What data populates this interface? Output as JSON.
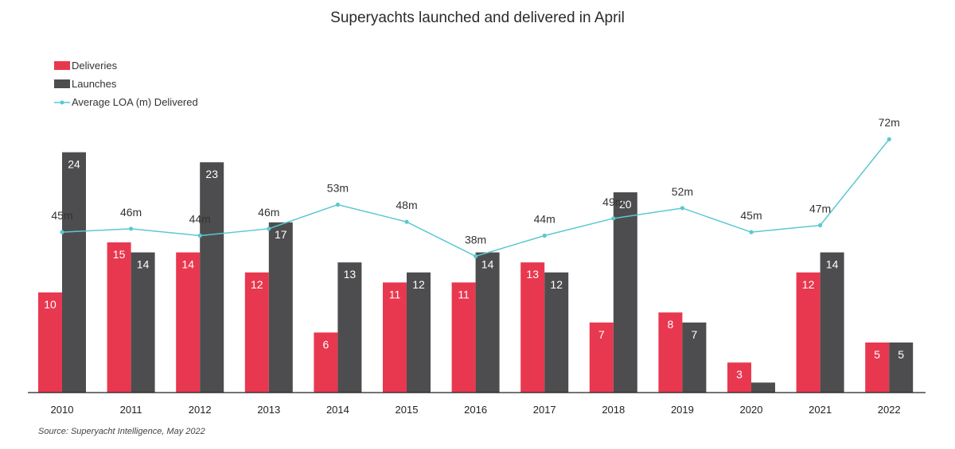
{
  "chart_data": {
    "type": "bar",
    "title": "Superyachts launched and delivered in April",
    "categories": [
      "2010",
      "2011",
      "2012",
      "2013",
      "2014",
      "2015",
      "2016",
      "2017",
      "2018",
      "2019",
      "2020",
      "2021",
      "2022"
    ],
    "series": [
      {
        "name": "Deliveries",
        "kind": "bar",
        "color": "#e8384f",
        "values": [
          10,
          15,
          14,
          12,
          6,
          11,
          11,
          13,
          7,
          8,
          3,
          12,
          5
        ],
        "labels": [
          "10",
          "15",
          "14",
          "12",
          "6",
          "11",
          "11",
          "13",
          "7",
          "8",
          "3",
          "12",
          "5"
        ]
      },
      {
        "name": "Launches",
        "kind": "bar",
        "color": "#4d4d4f",
        "values": [
          24,
          14,
          23,
          17,
          13,
          12,
          14,
          12,
          20,
          7,
          1,
          14,
          5
        ],
        "labels": [
          "24",
          "14",
          "23",
          "17",
          "13",
          "12",
          "14",
          "12",
          "20",
          "7",
          "",
          "14",
          "5"
        ]
      },
      {
        "name": "Average LOA (m) Delivered",
        "kind": "line",
        "color": "#5bc8d0",
        "values": [
          45,
          46,
          44,
          46,
          53,
          48,
          38,
          44,
          49,
          52,
          45,
          47,
          72
        ],
        "labels": [
          "45m",
          "46m",
          "44m",
          "46m",
          "53m",
          "48m",
          "38m",
          "44m",
          "49m",
          "52m",
          "45m",
          "47m",
          "72m"
        ]
      }
    ],
    "legend_position": "top-left",
    "grid": false,
    "source": "Source: Superyacht Intelligence, May 2022"
  }
}
